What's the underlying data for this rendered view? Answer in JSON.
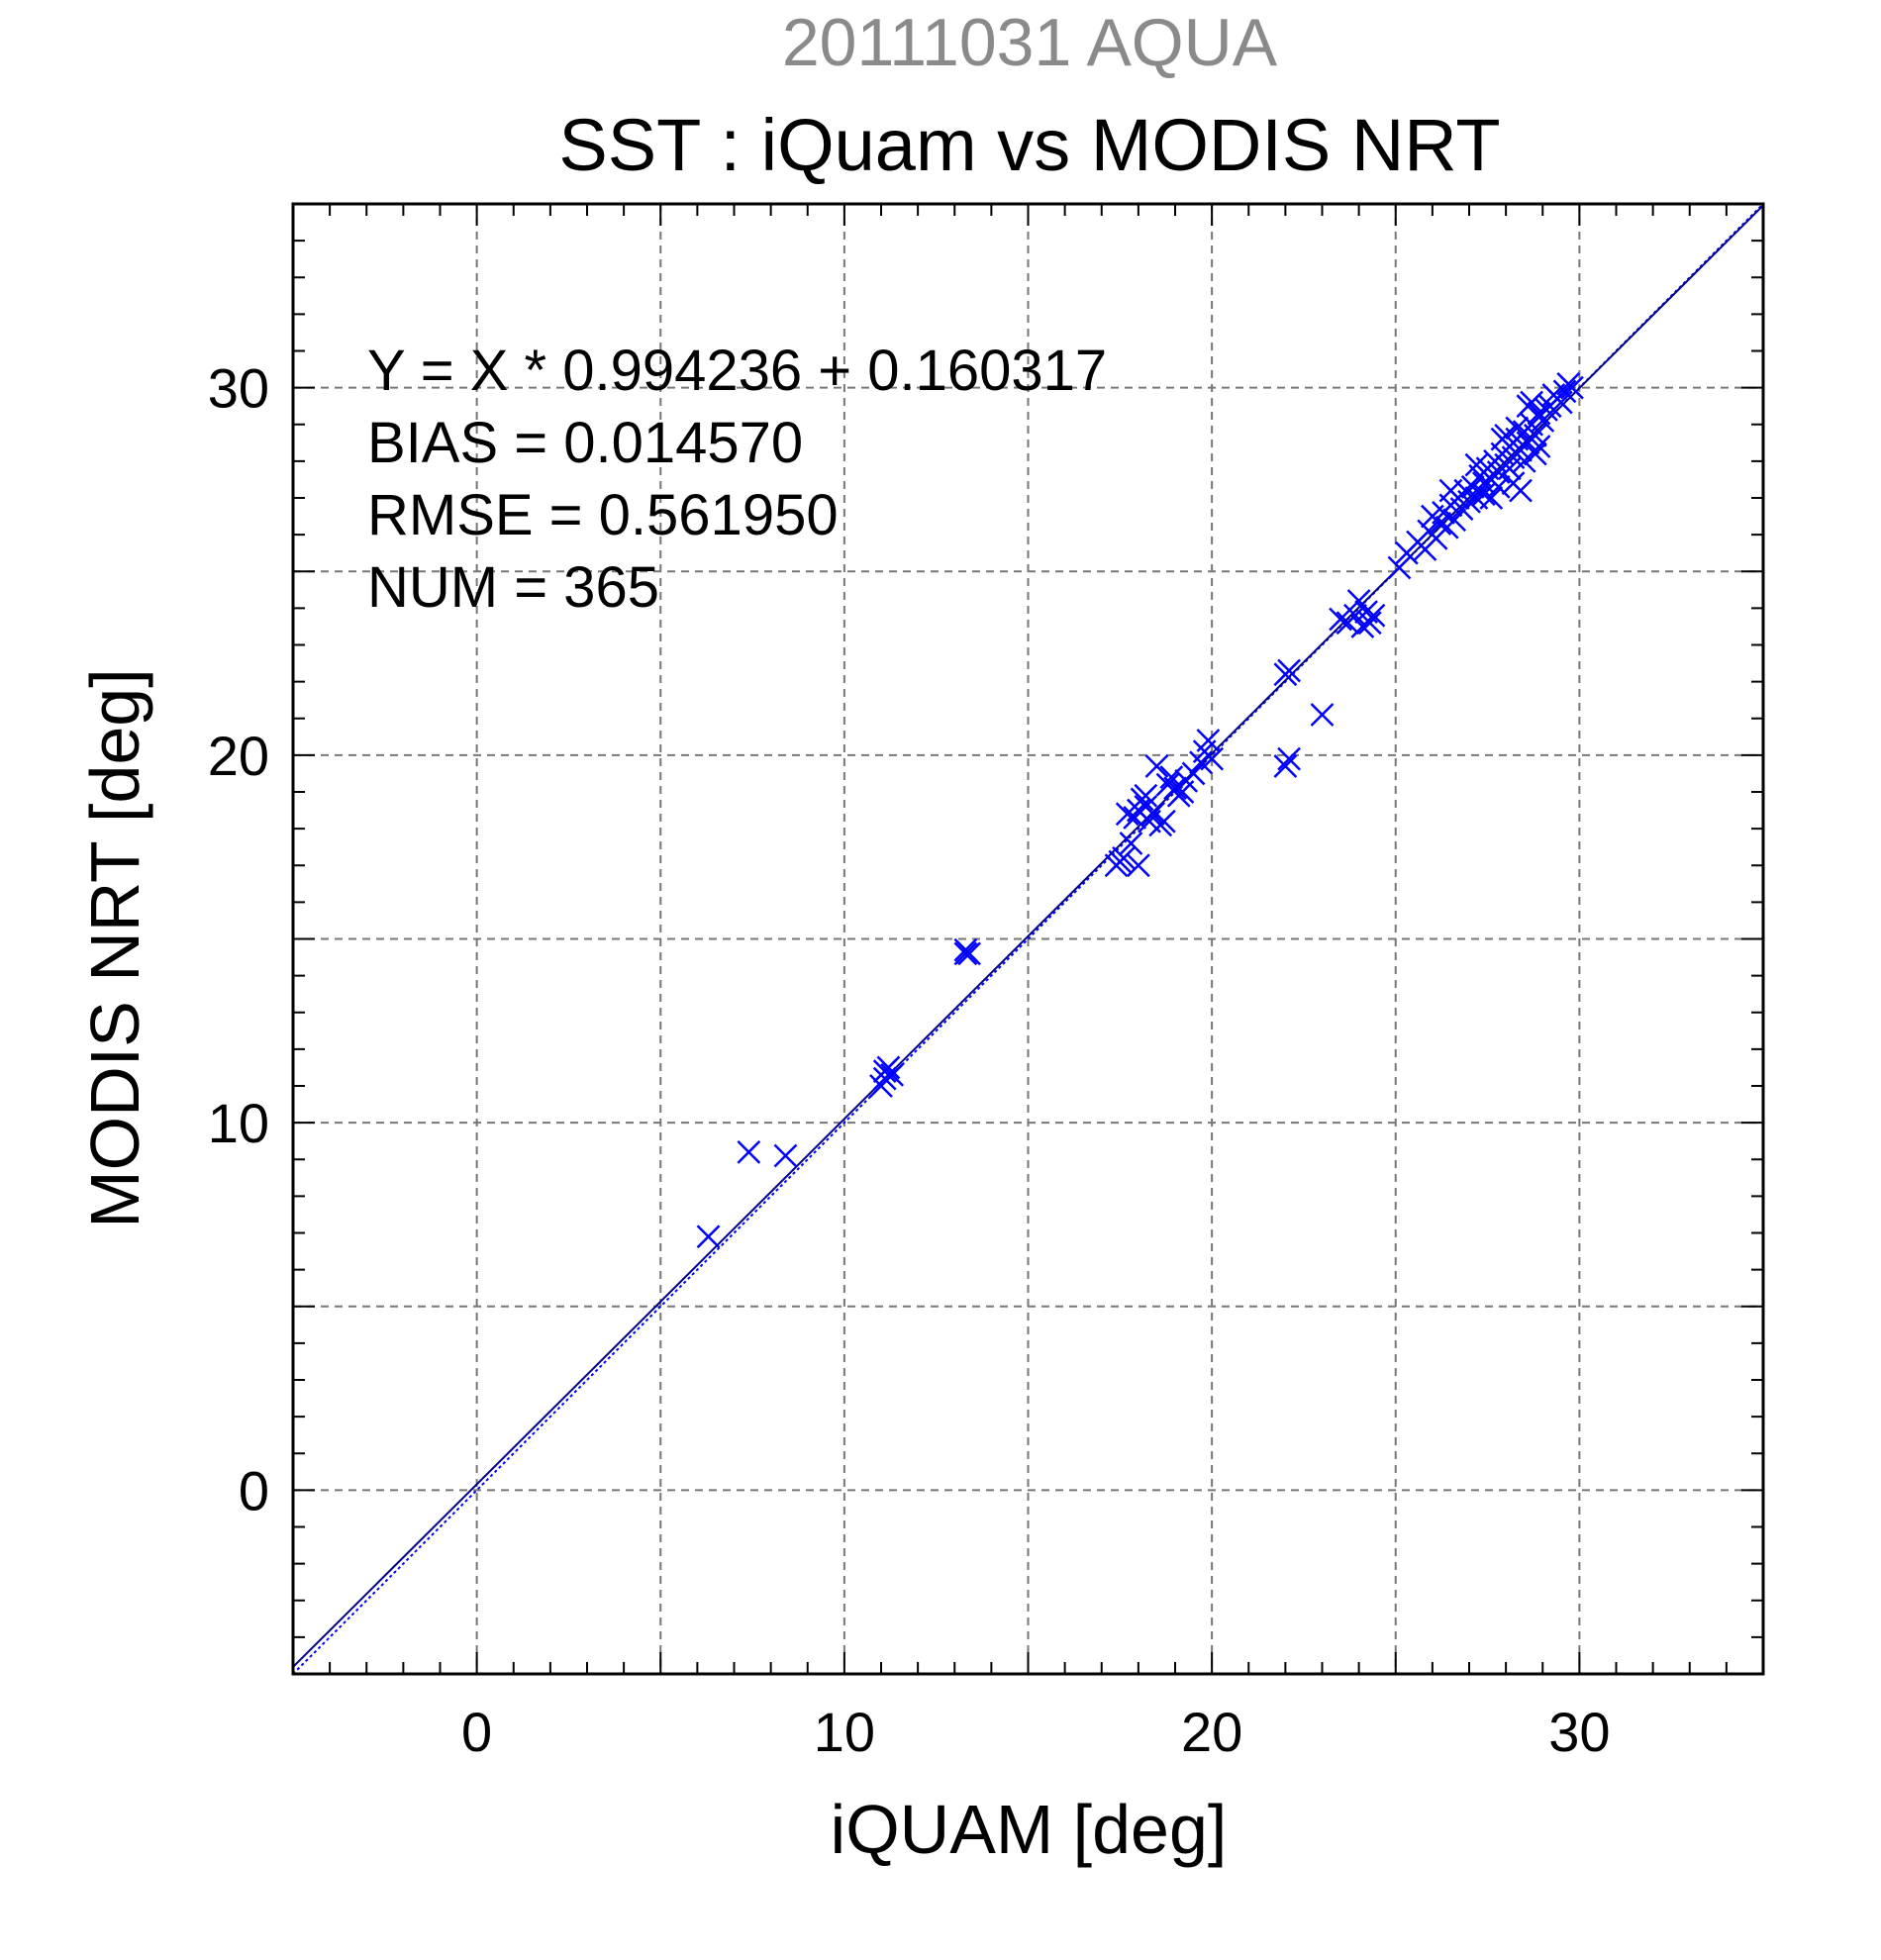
{
  "chart_data": {
    "type": "scatter",
    "subtitle": "20111031 AQUA",
    "title": "SST : iQuam vs MODIS NRT",
    "xlabel": "iQUAM [deg]",
    "ylabel": "MODIS NRT [deg]",
    "xlim": [
      -5,
      35
    ],
    "ylim": [
      -5,
      35
    ],
    "xticks": [
      0,
      10,
      20,
      30
    ],
    "yticks": [
      0,
      10,
      20,
      30
    ],
    "grid": true,
    "annotations": [
      "Y = X * 0.994236 + 0.160317",
      "BIAS = 0.014570",
      "RMSE = 0.561950",
      "NUM = 365"
    ],
    "fit": {
      "slope": 0.994236,
      "intercept": 0.160317
    },
    "colors": {
      "points": "#0000ff",
      "fit_line": "#00008b",
      "grid": "#777777"
    },
    "series": [
      {
        "marker": "x",
        "points": [
          [
            6.3,
            6.9
          ],
          [
            7.4,
            9.2
          ],
          [
            8.4,
            9.1
          ],
          [
            11.0,
            11.0
          ],
          [
            11.1,
            11.4
          ],
          [
            11.2,
            11.5
          ],
          [
            11.3,
            11.3
          ],
          [
            11.1,
            11.2
          ],
          [
            13.3,
            14.7
          ],
          [
            13.4,
            14.6
          ],
          [
            13.3,
            14.6
          ],
          [
            17.4,
            17.0
          ],
          [
            17.5,
            17.1
          ],
          [
            17.6,
            17.2
          ],
          [
            17.8,
            17.6
          ],
          [
            17.9,
            18.3
          ],
          [
            18.0,
            18.5
          ],
          [
            18.1,
            18.8
          ],
          [
            18.2,
            18.6
          ],
          [
            18.0,
            17.0
          ],
          [
            18.3,
            18.2
          ],
          [
            18.4,
            18.4
          ],
          [
            18.5,
            19.7
          ],
          [
            18.6,
            18.1
          ],
          [
            18.7,
            18.2
          ],
          [
            18.8,
            19.2
          ],
          [
            18.9,
            19.4
          ],
          [
            19.0,
            19.1
          ],
          [
            19.2,
            19.0
          ],
          [
            19.3,
            19.3
          ],
          [
            19.5,
            19.5
          ],
          [
            19.7,
            19.8
          ],
          [
            19.8,
            20.1
          ],
          [
            19.9,
            20.4
          ],
          [
            20.0,
            19.9
          ],
          [
            18.2,
            18.9
          ],
          [
            17.7,
            18.4
          ],
          [
            19.1,
            18.9
          ],
          [
            22.0,
            22.2
          ],
          [
            22.1,
            22.3
          ],
          [
            22.0,
            19.7
          ],
          [
            22.1,
            19.9
          ],
          [
            23.0,
            21.1
          ],
          [
            23.5,
            23.7
          ],
          [
            23.7,
            23.6
          ],
          [
            23.9,
            23.8
          ],
          [
            24.0,
            24.2
          ],
          [
            24.1,
            23.5
          ],
          [
            24.2,
            23.9
          ],
          [
            24.3,
            23.6
          ],
          [
            24.4,
            23.8
          ],
          [
            25.1,
            25.1
          ],
          [
            25.3,
            25.5
          ],
          [
            25.6,
            25.8
          ],
          [
            25.8,
            25.6
          ],
          [
            25.9,
            26.1
          ],
          [
            26.0,
            26.5
          ],
          [
            26.1,
            25.9
          ],
          [
            26.2,
            26.3
          ],
          [
            26.3,
            26.6
          ],
          [
            26.4,
            26.2
          ],
          [
            26.5,
            26.8
          ],
          [
            26.6,
            26.4
          ],
          [
            26.7,
            27.0
          ],
          [
            26.8,
            26.7
          ],
          [
            26.9,
            27.2
          ],
          [
            27.0,
            26.9
          ],
          [
            27.1,
            27.3
          ],
          [
            27.2,
            27.0
          ],
          [
            27.3,
            27.6
          ],
          [
            27.4,
            27.4
          ],
          [
            27.5,
            27.8
          ],
          [
            27.6,
            27.5
          ],
          [
            27.7,
            28.0
          ],
          [
            27.8,
            27.7
          ],
          [
            27.9,
            28.2
          ],
          [
            28.0,
            27.9
          ],
          [
            28.1,
            28.4
          ],
          [
            28.2,
            28.1
          ],
          [
            28.3,
            28.6
          ],
          [
            28.4,
            28.3
          ],
          [
            28.5,
            28.8
          ],
          [
            28.6,
            28.5
          ],
          [
            28.7,
            29.0
          ],
          [
            28.8,
            28.7
          ],
          [
            28.9,
            29.3
          ],
          [
            29.0,
            29.1
          ],
          [
            29.2,
            29.5
          ],
          [
            29.4,
            29.7
          ],
          [
            29.6,
            29.9
          ],
          [
            29.8,
            30.0
          ],
          [
            29.7,
            30.1
          ],
          [
            29.3,
            29.8
          ],
          [
            28.7,
            29.6
          ],
          [
            28.5,
            28.0
          ],
          [
            28.2,
            27.4
          ],
          [
            28.4,
            27.2
          ],
          [
            27.8,
            27.3
          ],
          [
            27.4,
            27.1
          ],
          [
            28.6,
            29.5
          ],
          [
            28.9,
            28.4
          ],
          [
            28.3,
            28.9
          ],
          [
            27.9,
            28.6
          ],
          [
            29.1,
            29.4
          ],
          [
            27.6,
            27.0
          ],
          [
            26.5,
            27.2
          ],
          [
            28.8,
            28.2
          ],
          [
            28.1,
            27.8
          ],
          [
            29.5,
            29.6
          ],
          [
            28.0,
            28.7
          ],
          [
            27.2,
            27.9
          ]
        ]
      }
    ]
  }
}
